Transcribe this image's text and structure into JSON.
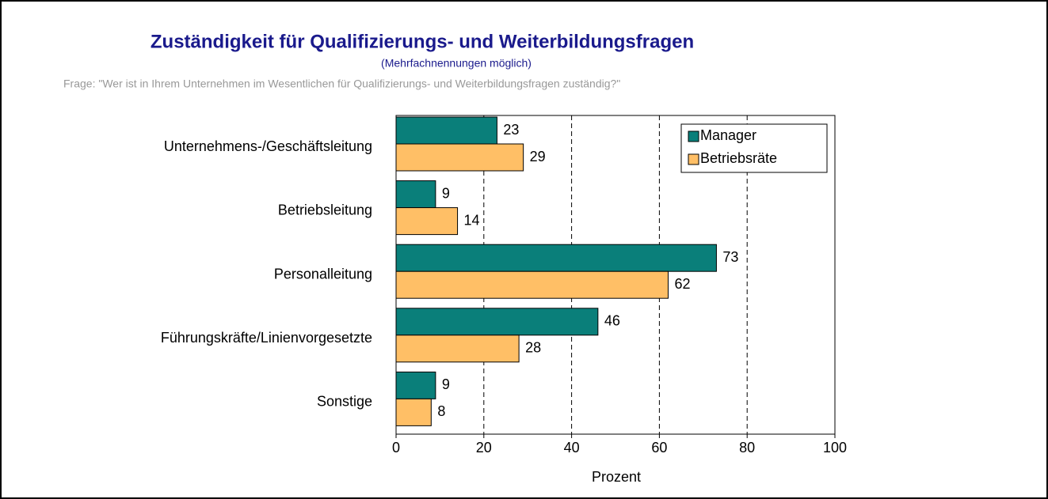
{
  "chart_data": {
    "type": "bar",
    "orientation": "horizontal",
    "title": "Zuständigkeit für Qualifizierungs- und Weiterbildungsfragen",
    "subtitle": "(Mehrfachnennungen möglich)",
    "note": "Frage: \"Wer ist in Ihrem Unternehmen im Wesentlichen für Qualifizierungs- und Weiterbildungsfragen zuständig?\"",
    "x_label": "Prozent",
    "categories": [
      "Unternehmens-/Geschäftsleitung",
      "Betriebsleitung",
      "Personalleitung",
      "Führungskräfte/Linienvorgesetzte",
      "Sonstige"
    ],
    "series": [
      {
        "name": "Manager",
        "color": "#0a7f7a",
        "values": [
          23,
          9,
          73,
          46,
          9
        ]
      },
      {
        "name": "Betriebsräte",
        "color": "#ffbf66",
        "values": [
          29,
          14,
          62,
          28,
          8
        ]
      }
    ],
    "xlim": [
      0,
      100
    ],
    "xticks": [
      0,
      20,
      40,
      60,
      80,
      100
    ],
    "grid": true,
    "legend": "upper right"
  }
}
